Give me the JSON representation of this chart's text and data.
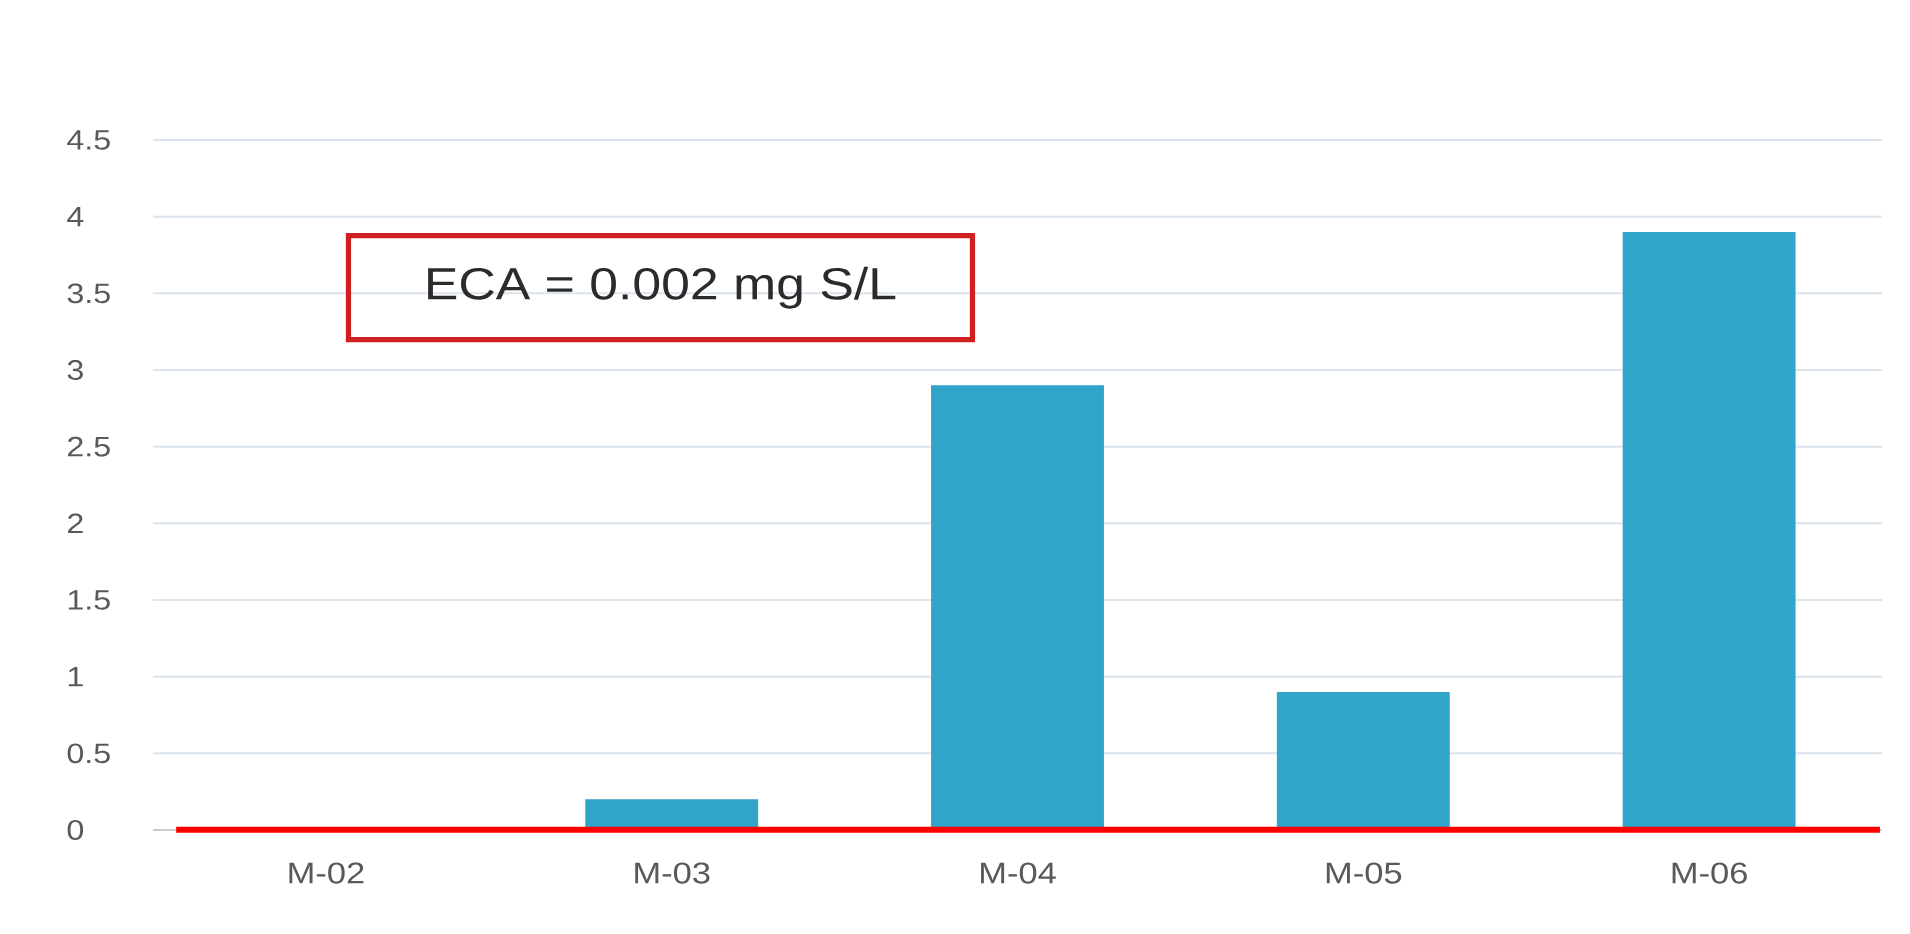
{
  "chart_data": {
    "type": "bar",
    "categories": [
      "M-02",
      "M-03",
      "M-04",
      "M-05",
      "M-06"
    ],
    "values": [
      0,
      0.2,
      2.9,
      0.9,
      3.9
    ],
    "color": "#31a5c9",
    "ylim": [
      0,
      4.5
    ],
    "yticks": [
      0,
      0.5,
      1,
      1.5,
      2,
      2.5,
      3,
      3.5,
      4,
      4.5
    ],
    "grid": "y",
    "ref_lines": [
      {
        "axis": "y",
        "value": 0.002,
        "color": "#ff0000"
      }
    ],
    "annotations": [
      "ECA = 0.002 mg S/L"
    ]
  }
}
